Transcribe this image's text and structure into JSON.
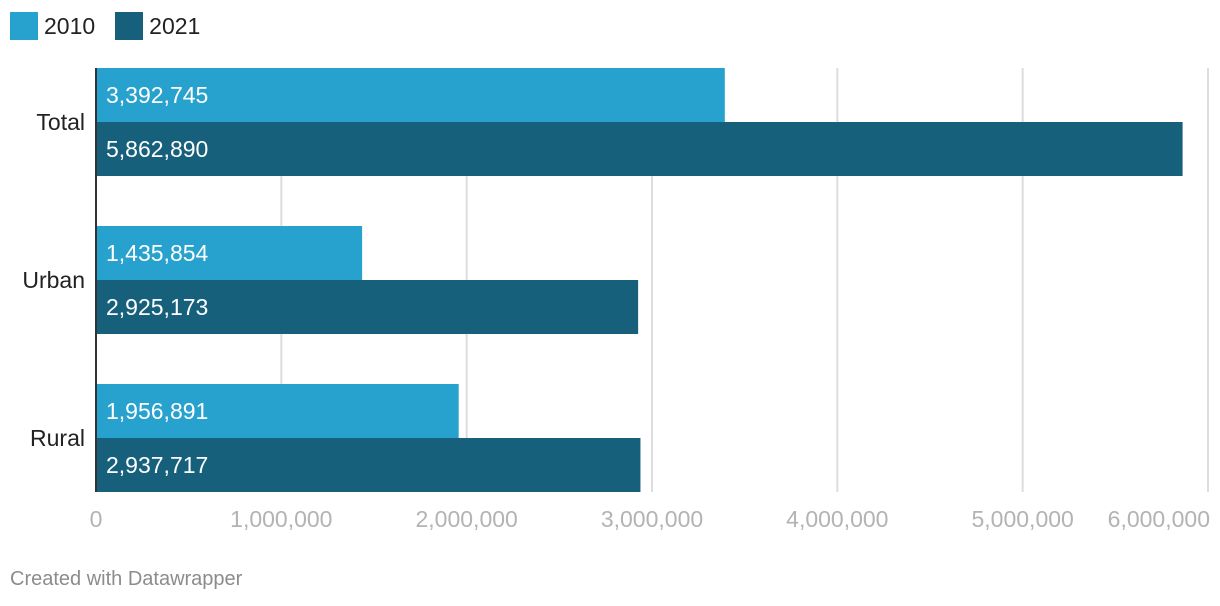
{
  "legend": [
    {
      "label": "2010",
      "color": "#27a1ce"
    },
    {
      "label": "2021",
      "color": "#17607c"
    }
  ],
  "footer": "Created with Datawrapper",
  "chart_data": {
    "type": "bar",
    "orientation": "horizontal",
    "categories": [
      "Total",
      "Urban",
      "Rural"
    ],
    "series": [
      {
        "name": "2010",
        "color": "#27a1ce",
        "values": [
          3392745,
          1435854,
          1956891
        ],
        "labels": [
          "3,392,745",
          "1,435,854",
          "1,956,891"
        ]
      },
      {
        "name": "2021",
        "color": "#17607c",
        "values": [
          5862890,
          2925173,
          2937717
        ],
        "labels": [
          "5,862,890",
          "2,925,173",
          "2,937,717"
        ]
      }
    ],
    "xlim": [
      0,
      6000000
    ],
    "xticks": [
      0,
      1000000,
      2000000,
      3000000,
      4000000,
      5000000,
      6000000
    ],
    "xtick_labels": [
      "0",
      "1,000,000",
      "2,000,000",
      "3,000,000",
      "4,000,000",
      "5,000,000",
      "6,000,000"
    ],
    "grid": true,
    "legend_position": "top-left"
  }
}
